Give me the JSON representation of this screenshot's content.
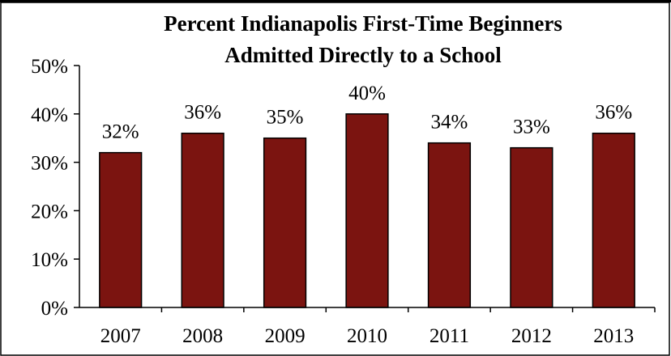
{
  "chart_data": {
    "type": "bar",
    "title_lines": [
      "Percent Indianapolis First-Time Beginners",
      "Admitted Directly to a School"
    ],
    "categories": [
      "2007",
      "2008",
      "2009",
      "2010",
      "2011",
      "2012",
      "2013"
    ],
    "values": [
      32,
      36,
      35,
      40,
      34,
      33,
      36
    ],
    "data_labels": [
      "32%",
      "36%",
      "35%",
      "40%",
      "34%",
      "33%",
      "36%"
    ],
    "y_ticks": [
      {
        "value": 0,
        "label": "0%"
      },
      {
        "value": 10,
        "label": "10%"
      },
      {
        "value": 20,
        "label": "20%"
      },
      {
        "value": 30,
        "label": "30%"
      },
      {
        "value": 40,
        "label": "40%"
      },
      {
        "value": 50,
        "label": "50%"
      }
    ],
    "ylim": [
      0,
      50
    ],
    "xlabel": "",
    "ylabel": "",
    "grid": false,
    "legend": "none",
    "bar_color": "#7B1410",
    "bar_edge_color": "#000000"
  }
}
